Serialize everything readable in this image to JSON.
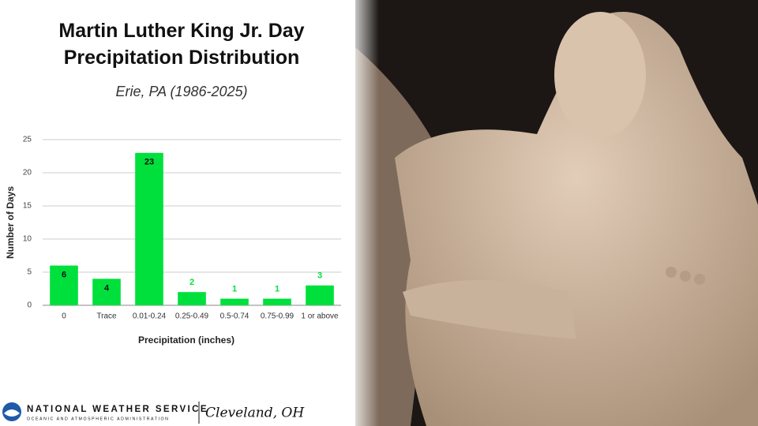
{
  "chart_data": {
    "type": "bar",
    "title": "Martin Luther King Jr. Day Precipitation Distribution",
    "subtitle": "Erie, PA (1986-2025)",
    "x_label": "Precipitation (inches)",
    "y_label": "Number of Days",
    "categories": [
      "0",
      "Trace",
      "0.01-0.24",
      "0.25-0.49",
      "0.5-0.74",
      "0.75-0.99",
      "1 or above"
    ],
    "values": [
      6,
      4,
      23,
      2,
      1,
      1,
      3
    ],
    "color": "#00e03c",
    "ylim": [
      0,
      25
    ],
    "yticks": [
      0,
      5,
      10,
      15,
      20,
      25
    ],
    "grid": true
  },
  "footer": {
    "agency": "NATIONAL WEATHER SERVICE",
    "subagency": "OCEANIC AND ATMOSPHERIC ADMINISTRATION",
    "office": "Cleveland, OH"
  }
}
